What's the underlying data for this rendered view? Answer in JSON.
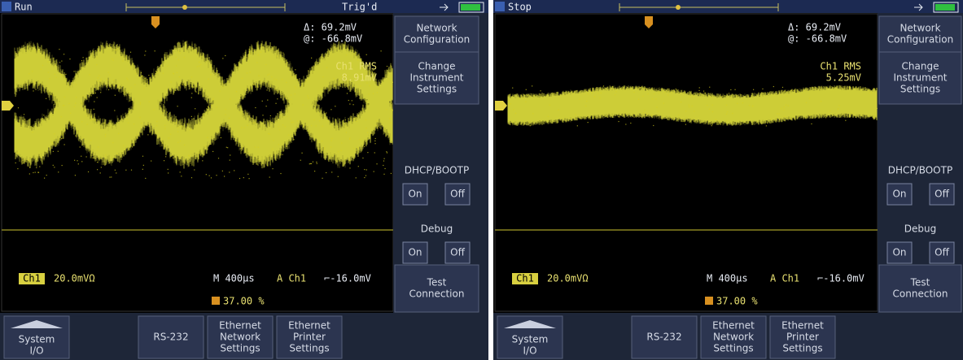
{
  "screens": [
    {
      "status": "Run",
      "trigger": "Trig'd",
      "delta": "Δ:  69.2mV",
      "at": "@:  -66.8mV",
      "measurement_label": "Ch1 RMS",
      "measurement_value": "8.91mV",
      "channel": "Ch1",
      "scale": "20.0mVΩ",
      "timebase": "M 400µs",
      "trigger_source": "A  Ch1",
      "trigger_level": "⌐-16.0mV",
      "position": "37.00 %",
      "side_menu": [
        {
          "label": [
            "Network",
            "Configuration"
          ]
        },
        {
          "label": [
            "Change",
            "Instrument",
            "Settings"
          ]
        },
        {
          "label": [
            "DHCP/BOOTP"
          ],
          "buttons": [
            "On",
            "Off"
          ]
        },
        {
          "label": [
            "Debug"
          ],
          "buttons": [
            "On",
            "Off"
          ]
        },
        {
          "label": [
            "Test",
            "Connection"
          ]
        }
      ],
      "bottom_menu": [
        [
          "System",
          "I/O"
        ],
        [
          "RS-232"
        ],
        [
          "Ethernet",
          "Network",
          "Settings"
        ],
        [
          "Ethernet",
          "Printer",
          "Settings"
        ]
      ]
    },
    {
      "status": "Stop",
      "delta": "Δ:  69.2mV",
      "at": "@:  -66.8mV",
      "measurement_label": "Ch1 RMS",
      "measurement_value": "5.25mV",
      "channel": "Ch1",
      "scale": "20.0mVΩ",
      "timebase": "M 400µs",
      "trigger_source": "A  Ch1",
      "trigger_level": "⌐-16.0mV",
      "position": "37.00 %",
      "side_menu": [
        {
          "label": [
            "Network",
            "Configuration"
          ]
        },
        {
          "label": [
            "Change",
            "Instrument",
            "Settings"
          ]
        },
        {
          "label": [
            "DHCP/BOOTP"
          ],
          "buttons": [
            "On",
            "Off"
          ]
        },
        {
          "label": [
            "Debug"
          ],
          "buttons": [
            "On",
            "Off"
          ]
        },
        {
          "label": [
            "Test",
            "Connection"
          ]
        }
      ],
      "bottom_menu": [
        [
          "System",
          "I/O"
        ],
        [
          "RS-232"
        ],
        [
          "Ethernet",
          "Network",
          "Settings"
        ],
        [
          "Ethernet",
          "Printer",
          "Settings"
        ]
      ]
    }
  ]
}
